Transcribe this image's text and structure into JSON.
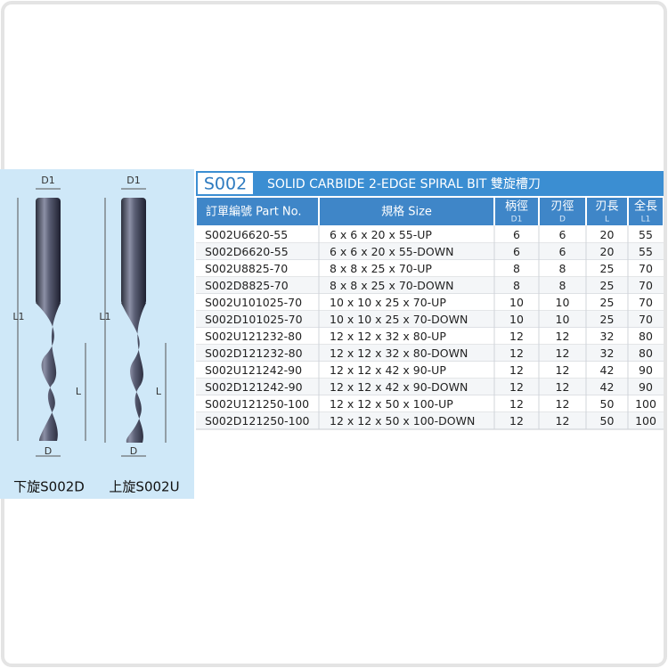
{
  "header": {
    "code": "S002",
    "title": "SOLID CARBIDE 2-EDGE SPIRAL BIT  雙旋槽刀"
  },
  "figure": {
    "drills": [
      {
        "d1": "D1",
        "l1": "L1",
        "l": "L",
        "d": "D",
        "caption": "下旋S002D"
      },
      {
        "d1": "D1",
        "l1": "L1",
        "l": "L",
        "d": "D",
        "caption": "上旋S002U"
      }
    ]
  },
  "table": {
    "columns": [
      {
        "label": "訂單編號 Part No."
      },
      {
        "label": "規格 Size"
      },
      {
        "label": "柄徑",
        "sub": "D1"
      },
      {
        "label": "刃徑",
        "sub": "D"
      },
      {
        "label": "刃長",
        "sub": "L"
      },
      {
        "label": "全長",
        "sub": "L1"
      }
    ],
    "rows": [
      [
        "S002U6620-55",
        "6 x 6 x 20 x 55-UP",
        6,
        6,
        20,
        55
      ],
      [
        "S002D6620-55",
        "6 x 6 x 20 x 55-DOWN",
        6,
        6,
        20,
        55
      ],
      [
        "S002U8825-70",
        "8 x 8 x 25 x 70-UP",
        8,
        8,
        25,
        70
      ],
      [
        "S002D8825-70",
        "8 x 8 x 25 x 70-DOWN",
        8,
        8,
        25,
        70
      ],
      [
        "S002U101025-70",
        "10 x 10 x 25 x 70-UP",
        10,
        10,
        25,
        70
      ],
      [
        "S002D101025-70",
        "10 x 10 x 25 x 70-DOWN",
        10,
        10,
        25,
        70
      ],
      [
        "S002U121232-80",
        "12 x 12 x 32 x 80-UP",
        12,
        12,
        32,
        80
      ],
      [
        "S002D121232-80",
        "12 x 12 x 32 x 80-DOWN",
        12,
        12,
        32,
        80
      ],
      [
        "S002U121242-90",
        "12 x 12 x 42 x 90-UP",
        12,
        12,
        42,
        90
      ],
      [
        "S002D121242-90",
        "12 x 12 x 42 x 90-DOWN",
        12,
        12,
        42,
        90
      ],
      [
        "S002U121250-100",
        "12 x 12 x 50 x 100-UP",
        12,
        12,
        50,
        100
      ],
      [
        "S002D121250-100",
        "12 x 12 x 50 x 100-DOWN",
        12,
        12,
        50,
        100
      ]
    ]
  }
}
